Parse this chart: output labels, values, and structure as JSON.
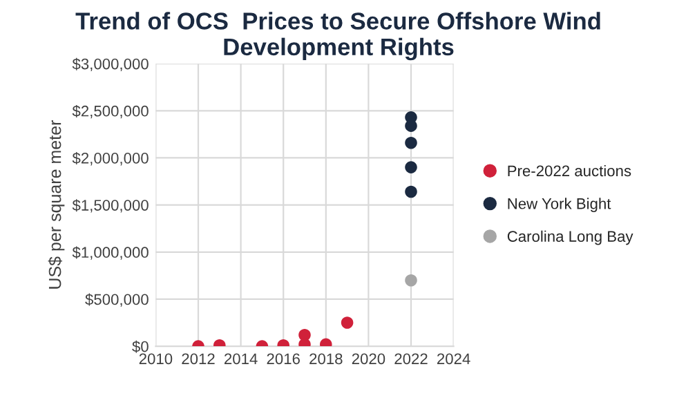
{
  "chart_data": {
    "type": "scatter",
    "title": "Trend of OCS  Prices to Secure Offshore Wind Development Rights",
    "ylabel": "US$ per square meter",
    "series": [
      {
        "name": "Pre-2022 auctions",
        "color": "#d0213a",
        "x": [
          2012,
          2013,
          2015,
          2016,
          2017,
          2017,
          2018,
          2019
        ],
        "values": [
          0,
          10000,
          0,
          10000,
          120000,
          20000,
          20000,
          250000
        ]
      },
      {
        "name": "New York Bight",
        "color": "#1b2a41",
        "x": [
          2022,
          2022,
          2022,
          2022,
          2022
        ],
        "values": [
          2430000,
          2340000,
          2160000,
          1900000,
          1640000
        ]
      },
      {
        "name": "Carolina Long Bay",
        "color": "#a6a6a6",
        "x": [
          2022
        ],
        "values": [
          700000
        ]
      }
    ],
    "xlim": [
      2010,
      2024
    ],
    "xticks": [
      2010,
      2012,
      2014,
      2016,
      2018,
      2020,
      2022,
      2024
    ],
    "ylim": [
      0,
      3000000
    ],
    "yticks": [
      {
        "value": 0,
        "label": "$0"
      },
      {
        "value": 500000,
        "label": "$500,000"
      },
      {
        "value": 1000000,
        "label": "$1,000,000"
      },
      {
        "value": 1500000,
        "label": "$1,500,000"
      },
      {
        "value": 2000000,
        "label": "$2,000,000"
      },
      {
        "value": 2500000,
        "label": "$2,500,000"
      },
      {
        "value": 3000000,
        "label": "$3,000,000"
      }
    ],
    "grid": true,
    "legend": "right",
    "marker": "circle"
  }
}
